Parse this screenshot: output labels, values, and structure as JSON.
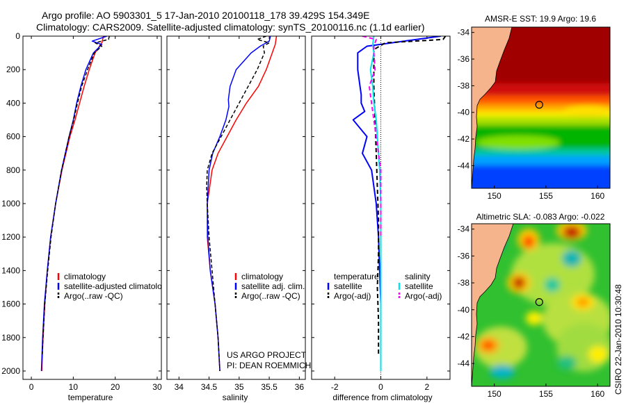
{
  "header": {
    "line1": "Argo profile: AO 5903301_5 17-Jan-2010 20100118_178 39.429S 154.349E",
    "line2": "Climatology: CARS2009. Satellite-adjusted climatology: synTS_20100116.nc (1.1d earlier)"
  },
  "credit": {
    "project": "US ARGO PROJECT",
    "pi": "PI: DEAN ROEMMICH",
    "stamp": "CSIRO 22-Jan-2010 10:30:48"
  },
  "colors": {
    "climatology": "#ff0000",
    "satellite": "#0000ff",
    "argo": "#000000",
    "sat_diff_salinity": "#00e5ee",
    "argo_diff_salinity": "#ff00ff",
    "land": "#f5b48c"
  },
  "chart_data": [
    {
      "id": "temperature",
      "type": "line",
      "xlabel": "temperature",
      "ylabel": "",
      "xlim": [
        -2,
        31
      ],
      "ylim": [
        2050,
        0
      ],
      "xticks": [
        0,
        10,
        20,
        30
      ],
      "yticks": [
        0,
        200,
        400,
        600,
        800,
        1000,
        1200,
        1400,
        1600,
        1800,
        2000
      ],
      "legend": [
        "climatology",
        "satellite-adjusted climatology",
        "Argo(..raw -QC)"
      ],
      "series": [
        {
          "name": "climatology",
          "color": "#ff0000",
          "width": 1.5,
          "dash": "",
          "depth": [
            0,
            40,
            100,
            200,
            300,
            400,
            500,
            600,
            800,
            1000,
            1200,
            1400,
            1600,
            1800,
            2000
          ],
          "values": [
            17.2,
            16.8,
            15.2,
            13.8,
            12.6,
            11.5,
            10.4,
            9.2,
            7.3,
            5.8,
            4.6,
            3.8,
            3.2,
            2.8,
            2.5
          ]
        },
        {
          "name": "satellite-adjusted climatology",
          "color": "#0000ff",
          "width": 1.5,
          "dash": "",
          "depth": [
            0,
            30,
            50,
            100,
            200,
            300,
            400,
            500,
            600,
            800,
            1000,
            1200,
            1400,
            1600,
            1800,
            2000
          ],
          "values": [
            18.0,
            14.5,
            16.8,
            14.8,
            13.0,
            11.8,
            10.8,
            10.0,
            9.0,
            7.2,
            5.8,
            4.6,
            3.8,
            3.1,
            2.7,
            2.4
          ]
        },
        {
          "name": "Argo(..raw -QC)",
          "color": "#000000",
          "width": 1.5,
          "dash": "5,3",
          "depth": [
            0,
            20,
            40,
            60,
            100,
            200,
            300,
            400,
            500,
            600,
            800,
            1000,
            1200,
            1400,
            1600,
            1800,
            1900
          ],
          "values": [
            18.6,
            18.4,
            15.2,
            16.8,
            15.0,
            13.4,
            12.0,
            11.0,
            10.1,
            9.0,
            7.2,
            5.8,
            4.7,
            3.9,
            3.2,
            2.8,
            2.6
          ]
        }
      ]
    },
    {
      "id": "salinity",
      "type": "line",
      "xlabel": "salinity",
      "ylabel": "",
      "xlim": [
        33.8,
        36.1
      ],
      "ylim": [
        2050,
        0
      ],
      "xticks": [
        34,
        34.5,
        35,
        35.5,
        36
      ],
      "xticklabels": [
        "34",
        "34.5",
        "35",
        "35.5",
        "36"
      ],
      "legend": [
        "climatology",
        "satellite adj. clim.",
        "Argo(..raw -QC)"
      ],
      "series": [
        {
          "name": "climatology",
          "color": "#ff0000",
          "width": 1.5,
          "dash": "",
          "depth": [
            0,
            50,
            100,
            200,
            300,
            400,
            500,
            600,
            700,
            800,
            1000,
            1200,
            1400,
            1600,
            1800,
            2000
          ],
          "values": [
            35.62,
            35.6,
            35.55,
            35.45,
            35.32,
            35.12,
            34.95,
            34.8,
            34.65,
            34.55,
            34.47,
            34.47,
            34.52,
            34.6,
            34.65,
            34.68
          ]
        },
        {
          "name": "satellite adj. clim.",
          "color": "#0000ff",
          "width": 1.5,
          "dash": "",
          "depth": [
            0,
            30,
            60,
            100,
            200,
            300,
            380,
            420,
            500,
            600,
            700,
            800,
            1000,
            1200,
            1400,
            1600,
            1800,
            2000
          ],
          "values": [
            35.52,
            35.5,
            35.35,
            35.2,
            34.95,
            34.85,
            34.82,
            34.83,
            34.78,
            34.68,
            34.56,
            34.5,
            34.47,
            34.48,
            34.52,
            34.6,
            34.65,
            34.68
          ]
        },
        {
          "name": "Argo(..raw -QC)",
          "color": "#000000",
          "width": 1.5,
          "dash": "5,3",
          "depth": [
            0,
            20,
            40,
            60,
            100,
            200,
            300,
            400,
            500,
            600,
            700,
            800,
            900,
            1000,
            1200,
            1400,
            1600,
            1800,
            2000
          ],
          "values": [
            35.45,
            35.3,
            35.5,
            35.4,
            35.42,
            35.3,
            35.15,
            35.0,
            34.85,
            34.7,
            34.55,
            34.47,
            34.46,
            34.47,
            34.5,
            34.55,
            34.6,
            34.65,
            34.68
          ]
        }
      ]
    },
    {
      "id": "difference",
      "type": "line",
      "xlabel": "difference from climatology",
      "ylabel": "",
      "xlim": [
        -3,
        3
      ],
      "ylim": [
        2050,
        0
      ],
      "xticks": [
        -2,
        0,
        2
      ],
      "legend_left_title": "temperature",
      "legend_right_title": "salinity",
      "legend": [
        "satellite",
        "Argo(-adj)",
        "satellite",
        "Argo(-adj)"
      ],
      "series": [
        {
          "name": "temperature satellite",
          "color": "#0000ff",
          "width": 2,
          "dash": "",
          "depth": [
            0,
            30,
            60,
            100,
            200,
            300,
            350,
            400,
            450,
            500,
            600,
            700,
            800,
            1000,
            1200,
            1400,
            1600,
            1800,
            2000
          ],
          "values": [
            2.6,
            1.0,
            -0.6,
            -1.0,
            -1.0,
            -0.9,
            -0.85,
            -0.85,
            -0.7,
            -1.2,
            -0.6,
            -0.8,
            -0.4,
            -0.2,
            -0.1,
            -0.05,
            0.0,
            0.0,
            0.0
          ]
        },
        {
          "name": "temperature Argo(-adj)",
          "color": "#000000",
          "width": 2,
          "dash": "6,4",
          "depth": [
            0,
            20,
            40,
            80,
            150,
            300,
            500,
            700,
            900,
            1100,
            1300,
            1500,
            1700,
            1900
          ],
          "values": [
            2.8,
            2.7,
            0.2,
            -0.3,
            -0.3,
            -0.3,
            -0.25,
            -0.2,
            -0.15,
            -0.1,
            -0.1,
            -0.15,
            -0.1,
            -0.1
          ]
        },
        {
          "name": "salinity satellite",
          "color": "#00e5ee",
          "width": 2,
          "dash": "",
          "depth": [
            0,
            50,
            100,
            200,
            300,
            400,
            500,
            600,
            700,
            800,
            1000,
            1200,
            1400,
            1600,
            1800,
            2000
          ],
          "values": [
            -0.3,
            -0.35,
            -0.3,
            -0.45,
            -0.35,
            -0.3,
            -0.2,
            -0.15,
            -0.1,
            -0.05,
            0.0,
            0.0,
            0.0,
            0.0,
            0.0,
            0.0
          ]
        },
        {
          "name": "salinity Argo(-adj)",
          "color": "#ff00ff",
          "width": 2,
          "dash": "6,4",
          "depth": [
            0,
            20,
            60,
            100,
            200,
            300,
            400,
            500,
            600,
            700,
            800,
            1000,
            1200
          ],
          "values": [
            -0.8,
            -0.2,
            -0.3,
            -0.3,
            -0.25,
            -0.5,
            -0.4,
            -0.3,
            -0.2,
            -0.1,
            0.0,
            0.0,
            0.0
          ]
        }
      ]
    },
    {
      "id": "sst_map",
      "type": "heatmap",
      "title": "AMSR-E SST: 19.9 Argo: 19.6",
      "xlim": [
        147.8,
        161.2
      ],
      "ylim": [
        -45.7,
        -33.6
      ],
      "xticks": [
        150,
        155,
        160
      ],
      "yticks": [
        -34,
        -36,
        -38,
        -40,
        -42,
        -44
      ],
      "profile_location": {
        "lon": 154.349,
        "lat": -39.429
      }
    },
    {
      "id": "sla_map",
      "type": "heatmap",
      "title": "Altimetric SLA: -0.083 Argo: -0.022",
      "xlim": [
        147.8,
        161.2
      ],
      "ylim": [
        -45.7,
        -33.6
      ],
      "xticks": [
        150,
        155,
        160
      ],
      "yticks": [
        -34,
        -36,
        -38,
        -40,
        -42,
        -44
      ],
      "profile_location": {
        "lon": 154.349,
        "lat": -39.429
      }
    }
  ]
}
